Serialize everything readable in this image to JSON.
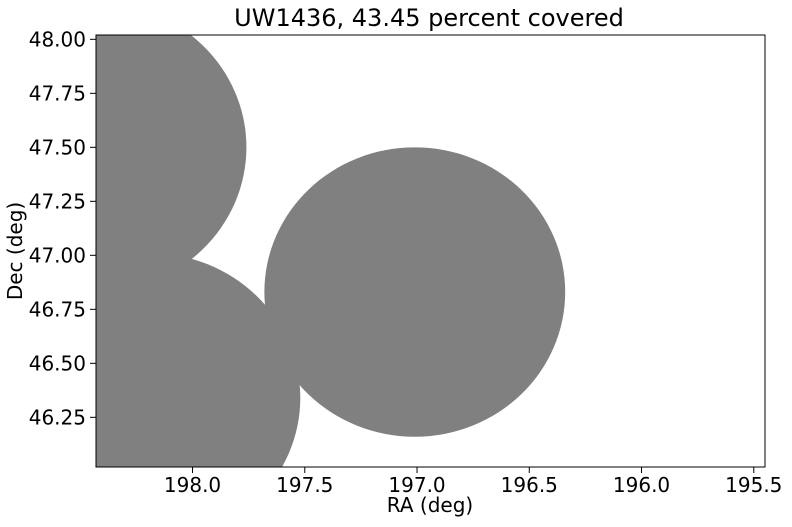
{
  "chart_data": {
    "type": "scatter",
    "title": "UW1436, 43.45 percent covered",
    "xlabel": "RA (deg)",
    "ylabel": "Dec (deg)",
    "xlim": [
      198.43,
      195.45
    ],
    "ylim": [
      46.02,
      48.02
    ],
    "x_inverted": true,
    "x_ticks": [
      198.0,
      197.5,
      197.0,
      196.5,
      196.0,
      195.5
    ],
    "x_tick_labels": [
      "198.0",
      "197.5",
      "197.0",
      "196.5",
      "196.0",
      "195.5"
    ],
    "y_ticks": [
      46.25,
      46.5,
      46.75,
      47.0,
      47.25,
      47.5,
      47.75,
      48.0
    ],
    "y_tick_labels": [
      "46.25",
      "46.50",
      "46.75",
      "47.00",
      "47.25",
      "47.50",
      "47.75",
      "48.00"
    ],
    "coverage_color": "#808080",
    "fields": [
      {
        "ra": 198.43,
        "dec": 47.5,
        "radius_deg": 0.67
      },
      {
        "ra": 198.19,
        "dec": 46.34,
        "radius_deg": 0.67
      },
      {
        "ra": 197.01,
        "dec": 46.83,
        "radius_deg": 0.67
      }
    ],
    "grid": false,
    "legend": false
  }
}
